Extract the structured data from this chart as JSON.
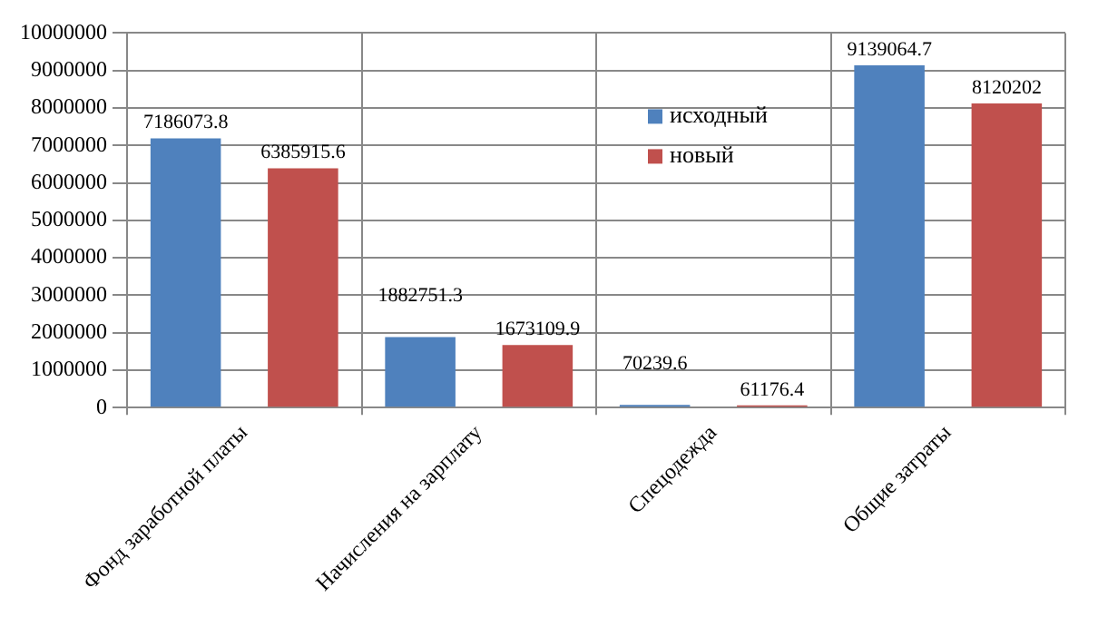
{
  "chart_data": {
    "type": "bar",
    "categories": [
      "Фонд заработной платы",
      "Начисления на зарплату",
      "Спецодежда",
      "Общие затраты"
    ],
    "series": [
      {
        "name": "исходный",
        "color": "#4f81bd",
        "values": [
          7186073.8,
          1882751.3,
          70239.6,
          9139064.7
        ]
      },
      {
        "name": "новый",
        "color": "#c0504d",
        "values": [
          6385915.6,
          1673109.9,
          61176.4,
          8120202
        ]
      }
    ],
    "ylim": [
      0,
      10000000
    ],
    "yticks": [
      0,
      1000000,
      2000000,
      3000000,
      4000000,
      5000000,
      6000000,
      7000000,
      8000000,
      9000000,
      10000000
    ],
    "grid": true,
    "legend": "top right",
    "data_labels": true
  }
}
